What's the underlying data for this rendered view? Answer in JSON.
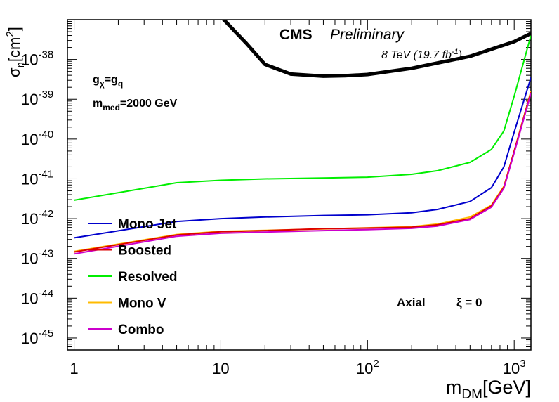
{
  "chart_data": {
    "type": "line",
    "xscale": "log",
    "yscale": "log",
    "xlim": [
      0.9,
      1300
    ],
    "ylim": [
      5e-46,
      1e-37
    ],
    "xlabel": "m_DM[GeV]",
    "ylabel": "σ_n[cm²]",
    "x_ticks": [
      1,
      10,
      100,
      1000
    ],
    "x_tick_labels": [
      {
        "base": "1",
        "exp": ""
      },
      {
        "base": "10",
        "exp": ""
      },
      {
        "base": "10",
        "exp": "2"
      },
      {
        "base": "10",
        "exp": "3"
      }
    ],
    "y_ticks": [
      1e-45,
      1e-44,
      1e-43,
      1e-42,
      1e-41,
      1e-40,
      1e-39,
      1e-38
    ],
    "y_tick_labels": [
      {
        "base": "10",
        "exp": "-45"
      },
      {
        "base": "10",
        "exp": "-44"
      },
      {
        "base": "10",
        "exp": "-43"
      },
      {
        "base": "10",
        "exp": "-42"
      },
      {
        "base": "10",
        "exp": "-41"
      },
      {
        "base": "10",
        "exp": "-40"
      },
      {
        "base": "10",
        "exp": "-39"
      },
      {
        "base": "10",
        "exp": "-38"
      }
    ],
    "series": [
      {
        "name": "Mono Jet",
        "color": "#0000cc",
        "x": [
          1,
          5,
          10,
          20,
          50,
          100,
          200,
          300,
          500,
          700,
          850,
          1000,
          1300
        ],
        "y": [
          3.3e-43,
          8.5e-43,
          1e-42,
          1.1e-42,
          1.2e-42,
          1.25e-42,
          1.4e-42,
          1.7e-42,
          2.7e-42,
          6e-42,
          2e-41,
          1.5e-40,
          3.5e-39
        ]
      },
      {
        "name": "Boosted",
        "color": "#dd0000",
        "x": [
          1,
          5,
          10,
          20,
          50,
          100,
          200,
          300,
          500,
          700,
          850,
          1000,
          1300
        ],
        "y": [
          1.45e-43,
          3.9e-43,
          4.7e-43,
          5e-43,
          5.6e-43,
          5.8e-43,
          6.1e-43,
          7e-43,
          1e-42,
          2.1e-42,
          6.2e-42,
          5e-41,
          1.5e-39
        ]
      },
      {
        "name": "Resolved",
        "color": "#00ee00",
        "x": [
          1,
          5,
          10,
          20,
          50,
          100,
          200,
          300,
          500,
          700,
          850,
          1000,
          1300
        ],
        "y": [
          2.9e-42,
          8e-42,
          9.2e-42,
          1e-41,
          1.05e-41,
          1.1e-41,
          1.3e-41,
          1.6e-41,
          2.6e-41,
          5.5e-41,
          1.6e-40,
          1.2e-39,
          4e-38
        ]
      },
      {
        "name": "Mono V",
        "color": "#ffbb00",
        "x": [
          1,
          5,
          10,
          20,
          50,
          100,
          200,
          300,
          500,
          700,
          850,
          1000,
          1300
        ],
        "y": [
          1.5e-43,
          4e-43,
          4.8e-43,
          5.1e-43,
          5.5e-43,
          5.9e-43,
          6.3e-43,
          7.3e-43,
          1.1e-42,
          2.2e-42,
          6.5e-42,
          5e-41,
          1.6e-39
        ]
      },
      {
        "name": "Combo",
        "color": "#cc00cc",
        "x": [
          1,
          5,
          10,
          20,
          50,
          100,
          200,
          300,
          500,
          700,
          850,
          1000,
          1300
        ],
        "y": [
          1.3e-43,
          3.6e-43,
          4.3e-43,
          4.6e-43,
          5e-43,
          5.3e-43,
          5.7e-43,
          6.5e-43,
          9.5e-43,
          1.95e-42,
          5.8e-42,
          4.5e-41,
          1.4e-39
        ]
      },
      {
        "name": "",
        "color": "#000000",
        "x": [
          8,
          10,
          15,
          20,
          30,
          50,
          70,
          100,
          200,
          500,
          1000,
          1300
        ],
        "y": [
          2e-37,
          1.2e-37,
          2.5e-38,
          7.5e-39,
          4.3e-39,
          3.8e-39,
          3.9e-39,
          4.2e-39,
          6e-39,
          1.2e-38,
          2.8e-38,
          4.5e-38
        ]
      }
    ],
    "legend": [
      {
        "label": "Mono Jet",
        "color": "#0000cc"
      },
      {
        "label": "Boosted",
        "color": "#dd0000"
      },
      {
        "label": "Resolved",
        "color": "#00ee00"
      },
      {
        "label": "Mono V",
        "color": "#ffbb00"
      },
      {
        "label": "Combo",
        "color": "#cc00cc"
      }
    ],
    "legend_position": "left",
    "grid": false
  },
  "labels": {
    "cms": "CMS",
    "preliminary": "Preliminary",
    "lumi_pre": "8 TeV (19.7 fb",
    "lumi_exp": "-1",
    "lumi_post": ")",
    "coupling_gchi": "g",
    "coupling_chi_sub": "χ",
    "coupling_eq": "=g",
    "coupling_q_sub": "q",
    "mmed_m": "m",
    "mmed_sub": "med",
    "mmed_value": "=2000 GeV",
    "axial": "Axial",
    "xi": "ξ = 0",
    "xlabel_m": "m",
    "xlabel_sub": "DM",
    "xlabel_unit": "[GeV]",
    "ylabel_sigma": "σ",
    "ylabel_sub": "n",
    "ylabel_unit_pre": "[cm",
    "ylabel_unit_exp": "2",
    "ylabel_unit_post": "]"
  }
}
